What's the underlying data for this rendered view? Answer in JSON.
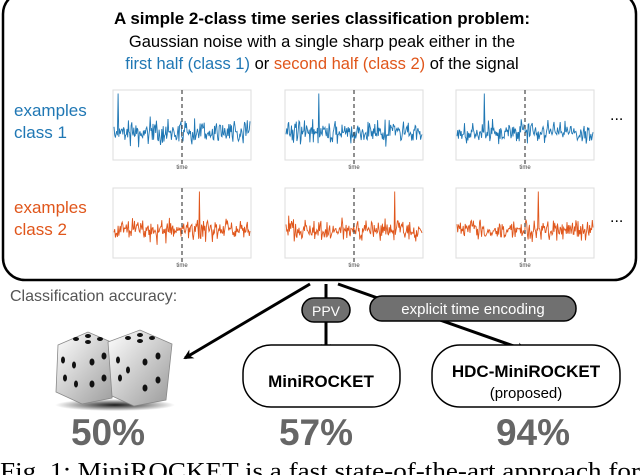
{
  "title": "A simple 2-class time series classification problem:",
  "subtitle_line1": "Gaussian noise with a single sharp peak either in the",
  "subtitle_line2": {
    "part1": "first half (class 1)",
    "part2": " or ",
    "part3": "second half (class 2)",
    "part4": " of the signal"
  },
  "rows": [
    {
      "label_line1": "examples",
      "label_line2": "class 1",
      "color": "#1f77b4",
      "peaks": [
        0.03,
        0.24,
        0.2
      ]
    },
    {
      "label_line1": "examples",
      "label_line2": "class 2",
      "color": "#e0561b",
      "peaks": [
        0.63,
        0.8,
        0.6
      ]
    }
  ],
  "axis_label": "time",
  "ellipsis": "...",
  "accuracy_label": "Classification accuracy:",
  "ppv_label": "PPV",
  "time_encoding_label": "explicit time encoding",
  "methods": [
    {
      "name": "",
      "accuracy": "50%",
      "icon": "dice-icon"
    },
    {
      "name": "MiniROCKET",
      "accuracy": "57%"
    },
    {
      "name": "HDC-MiniROCKET",
      "note": "(proposed)",
      "accuracy": "94%"
    }
  ],
  "caption": "Fig. 1: MiniROCKET is a fast state-of-the-art approach for",
  "colors": {
    "class1": "#1f77b4",
    "class2": "#e0561b",
    "pill": "#707070",
    "accuracy": "#666666"
  }
}
